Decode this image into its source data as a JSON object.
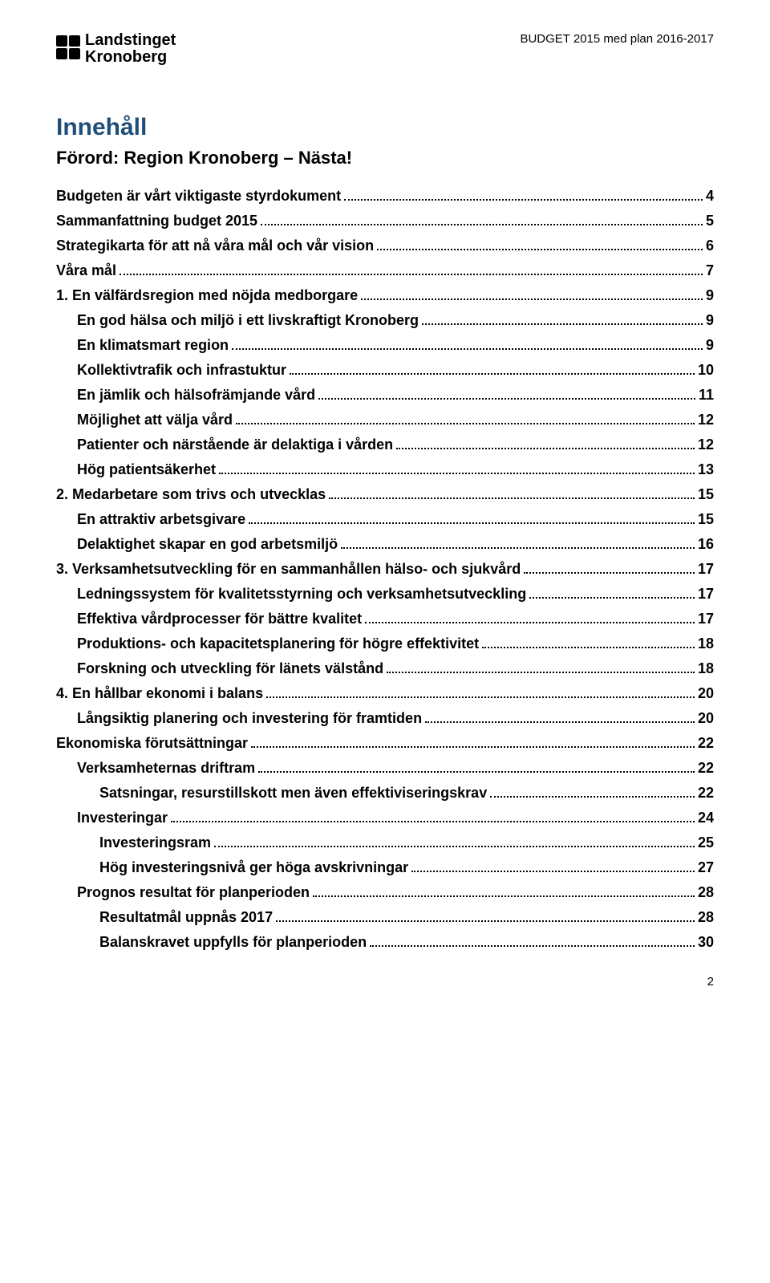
{
  "header": {
    "logo_line1": "Landstinget",
    "logo_line2": "Kronoberg",
    "right_text": "BUDGET 2015 med plan 2016-2017"
  },
  "title": "Innehåll",
  "subtitle": "Förord: Region Kronoberg – Nästa!",
  "toc": [
    {
      "label": "Budgeten är vårt viktigaste styrdokument",
      "page": "4",
      "level": 0
    },
    {
      "label": "Sammanfattning budget 2015",
      "page": "5",
      "level": 0
    },
    {
      "label": "Strategikarta för att nå våra mål och vår vision",
      "page": "6",
      "level": 0
    },
    {
      "label": "Våra mål",
      "page": "7",
      "level": 0
    },
    {
      "label": "1. En välfärdsregion med nöjda medborgare",
      "page": "9",
      "level": 0
    },
    {
      "label": "En god hälsa och miljö i ett livskraftigt Kronoberg",
      "page": "9",
      "level": 1
    },
    {
      "label": "En klimatsmart region",
      "page": "9",
      "level": 1
    },
    {
      "label": "Kollektivtrafik och infrastuktur",
      "page": "10",
      "level": 1
    },
    {
      "label": "En jämlik och hälsofrämjande vård",
      "page": "11",
      "level": 1
    },
    {
      "label": "Möjlighet att välja vård",
      "page": "12",
      "level": 1
    },
    {
      "label": "Patienter och närstående är delaktiga i vården",
      "page": "12",
      "level": 1
    },
    {
      "label": "Hög patientsäkerhet",
      "page": "13",
      "level": 1
    },
    {
      "label": "2. Medarbetare som trivs och utvecklas",
      "page": "15",
      "level": 0
    },
    {
      "label": "En attraktiv arbetsgivare",
      "page": "15",
      "level": 1
    },
    {
      "label": "Delaktighet skapar en god arbetsmiljö",
      "page": "16",
      "level": 1
    },
    {
      "label": "3. Verksamhetsutveckling för en sammanhållen hälso- och sjukvård",
      "page": "17",
      "level": 0
    },
    {
      "label": "Ledningssystem för kvalitetsstyrning och verksamhetsutveckling",
      "page": "17",
      "level": 1
    },
    {
      "label": "Effektiva vårdprocesser för bättre kvalitet",
      "page": "17",
      "level": 1
    },
    {
      "label": "Produktions- och kapacitetsplanering för högre effektivitet",
      "page": "18",
      "level": 1
    },
    {
      "label": "Forskning och utveckling för länets välstånd",
      "page": "18",
      "level": 1
    },
    {
      "label": "4. En hållbar ekonomi i balans",
      "page": "20",
      "level": 0
    },
    {
      "label": "Långsiktig planering och investering för framtiden",
      "page": "20",
      "level": 1
    },
    {
      "label": "Ekonomiska förutsättningar",
      "page": "22",
      "level": 0
    },
    {
      "label": "Verksamheternas driftram",
      "page": "22",
      "level": 1
    },
    {
      "label": "Satsningar, resurstillskott men även effektiviseringskrav",
      "page": "22",
      "level": 2
    },
    {
      "label": "Investeringar",
      "page": "24",
      "level": 1
    },
    {
      "label": "Investeringsram",
      "page": "25",
      "level": 2
    },
    {
      "label": "Hög investeringsnivå ger höga avskrivningar",
      "page": "27",
      "level": 2
    },
    {
      "label": "Prognos resultat för planperioden",
      "page": "28",
      "level": 1
    },
    {
      "label": "Resultatmål uppnås 2017",
      "page": "28",
      "level": 2
    },
    {
      "label": "Balanskravet uppfylls för planperioden",
      "page": "30",
      "level": 2
    }
  ],
  "footer_page": "2",
  "colors": {
    "title_color": "#1f4e79",
    "text_color": "#000000",
    "background": "#ffffff"
  },
  "typography": {
    "title_fontsize": 30,
    "subtitle_fontsize": 22,
    "toc_fontsize": 18,
    "header_fontsize": 15
  }
}
